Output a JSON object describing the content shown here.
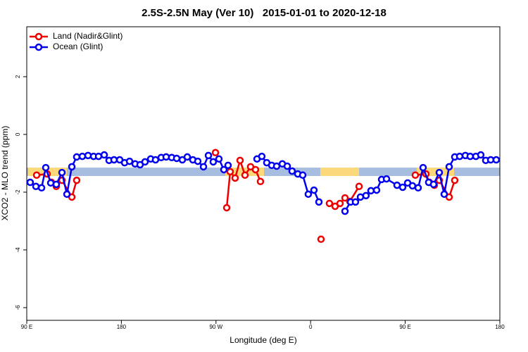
{
  "chart_data": {
    "type": "line",
    "title": "2.5S-2.5N May (Ver 10)   2015-01-01 to 2020-12-18",
    "x_label": "Longitude (deg E)",
    "y_label": "XCO2 - MLO trend (ppm)",
    "xlim": [
      90,
      540
    ],
    "ylim": [
      -6.44,
      3.73
    ],
    "xticks": [
      {
        "value": 90,
        "label": "90 E"
      },
      {
        "value": 180,
        "label": "180"
      },
      {
        "value": 270,
        "label": "90 W"
      },
      {
        "value": 360,
        "label": "0"
      },
      {
        "value": 450,
        "label": "90 E"
      },
      {
        "value": 540,
        "label": "180"
      }
    ],
    "yticks": [
      -6,
      -4,
      -2,
      0,
      2
    ],
    "band": {
      "color": "#a7bde0",
      "range": [
        -1.44,
        -1.15
      ]
    },
    "highlights": {
      "color": "#fbd97a",
      "x": [
        [
          91.3,
          128.2
        ],
        [
          278.8,
          315.7
        ],
        [
          369.2,
          406.1
        ],
        [
          461.0,
          496.5
        ]
      ]
    },
    "legend": "top-left",
    "series": [
      {
        "name": "Land (Nadir&Glint)",
        "color": "#ee0000",
        "x": [
          99.4,
          109.4,
          113.4,
          118.1,
          123.5,
          132.9,
          137.5,
          null,
          269.5,
          null,
          280.2,
          283.5,
          288.2,
          292.9,
          297.6,
          302.9,
          307.6,
          312.3,
          null,
          369.9,
          null,
          377.9,
          383.3,
          388.0,
          392.7,
          397.3,
          406.1,
          null,
          459.6,
          469.7,
          473.0,
          477.7,
          482.4,
          491.8,
          497.1
        ],
        "values": [
          -1.41,
          -1.37,
          -1.66,
          -1.8,
          -1.59,
          -2.17,
          -1.59,
          null,
          -0.63,
          null,
          -2.54,
          -1.29,
          -1.51,
          -0.9,
          -1.41,
          -1.12,
          -1.22,
          -1.63,
          null,
          -3.63,
          null,
          -2.39,
          -2.49,
          -2.39,
          -2.2,
          -2.32,
          -1.8,
          null,
          -1.41,
          -1.37,
          -1.66,
          -1.76,
          -1.59,
          -2.17,
          -1.59
        ]
      },
      {
        "name": "Ocean (Glint)",
        "color": "#0000ee",
        "x": [
          93.3,
          98.7,
          104.1,
          108.1,
          112.8,
          118.1,
          123.5,
          128.2,
          132.9,
          137.5,
          142.9,
          148.3,
          153.6,
          158.3,
          163.7,
          168.3,
          173.0,
          178.4,
          183.1,
          187.8,
          193.1,
          197.8,
          202.5,
          207.9,
          212.5,
          217.9,
          222.6,
          227.9,
          232.6,
          238.0,
          242.7,
          248.0,
          252.7,
          258.1,
          262.8,
          267.4,
          272.8,
          277.5,
          281.5,
          null,
          309.0,
          313.6,
          318.3,
          323.0,
          327.7,
          333.1,
          337.8,
          342.4,
          347.8,
          352.5,
          357.8,
          363.2,
          367.9,
          null,
          392.7,
          398.0,
          402.7,
          407.4,
          412.7,
          417.4,
          422.8,
          427.5,
          432.2,
          442.2,
          447.6,
          452.3,
          456.9,
          462.3,
          467.0,
          472.3,
          477.0,
          482.4,
          487.1,
          491.8,
          497.1,
          501.8,
          507.2,
          511.8,
          517.2,
          521.9,
          526.6,
          531.3,
          536.6
        ],
        "values": [
          -1.66,
          -1.8,
          -1.85,
          -1.15,
          -1.68,
          -1.73,
          -1.32,
          -2.07,
          -1.12,
          -0.78,
          -0.76,
          -0.73,
          -0.76,
          -0.76,
          -0.71,
          -0.9,
          -0.88,
          -0.88,
          -0.98,
          -0.93,
          -1.02,
          -1.05,
          -0.95,
          -0.85,
          -0.88,
          -0.8,
          -0.78,
          -0.8,
          -0.83,
          -0.88,
          -0.78,
          -0.88,
          -0.93,
          -1.12,
          -0.73,
          -0.95,
          -0.85,
          -1.22,
          -1.07,
          null,
          -0.85,
          -0.76,
          -0.98,
          -1.07,
          -1.1,
          -1.02,
          -1.1,
          -1.27,
          -1.37,
          -1.41,
          -2.07,
          -1.93,
          -2.34,
          null,
          -2.66,
          -2.34,
          -2.34,
          -2.17,
          -2.12,
          -1.95,
          -1.93,
          -1.56,
          -1.54,
          -1.76,
          -1.83,
          -1.68,
          -1.78,
          -1.85,
          -1.15,
          -1.66,
          -1.73,
          -1.32,
          -2.07,
          -1.12,
          -0.78,
          -0.76,
          -0.73,
          -0.76,
          -0.76,
          -0.71,
          -0.9,
          -0.88,
          -0.88
        ]
      }
    ]
  }
}
